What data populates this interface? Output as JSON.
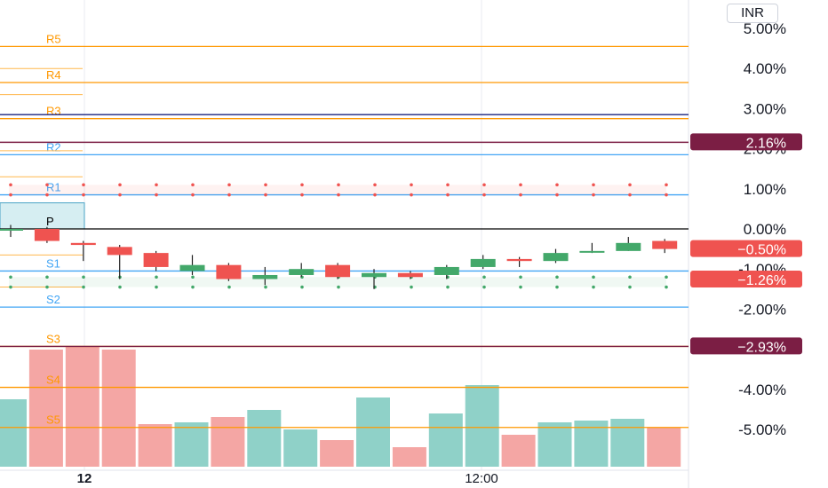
{
  "currency": "INR",
  "colors": {
    "up": "#43a86a",
    "down": "#ef5350",
    "vol_up": "#8fd1c8",
    "vol_down": "#f4a6a4",
    "pivot_resistance": "#ff9800",
    "pivot_support": "#ff9800",
    "pivot_rs2": "#42a5f5",
    "dark_line": "#7b1e44",
    "navy_line": "#1a237e",
    "pivot_line": "#000000"
  },
  "chart_data": {
    "type": "candlestick",
    "y_unit": "%",
    "ylim": [
      -6.2,
      5.8
    ],
    "yticks": [
      "5.00%",
      "4.00%",
      "3.00%",
      "2.00%",
      "1.00%",
      "0.00%",
      "-1.00%",
      "-2.00%",
      "-4.00%",
      "-5.00%"
    ],
    "ytick_values": [
      5,
      4,
      3,
      2,
      1,
      0,
      -1,
      -2,
      -4,
      -5
    ],
    "x_labels": [
      "12",
      "12:00"
    ],
    "candles": [
      {
        "o": 0.0,
        "c": 0.0,
        "h": 0.1,
        "l": -0.2
      },
      {
        "o": 0.0,
        "c": -0.3,
        "h": 0.05,
        "l": -0.35
      },
      {
        "o": -0.35,
        "c": -0.4,
        "h": -0.3,
        "l": -0.8
      },
      {
        "o": -0.45,
        "c": -0.65,
        "h": -0.4,
        "l": -1.25
      },
      {
        "o": -0.6,
        "c": -0.95,
        "h": -0.55,
        "l": -1.05
      },
      {
        "o": -1.05,
        "c": -0.9,
        "h": -0.65,
        "l": -1.15
      },
      {
        "o": -0.9,
        "c": -1.25,
        "h": -0.85,
        "l": -1.3
      },
      {
        "o": -1.25,
        "c": -1.15,
        "h": -0.95,
        "l": -1.4
      },
      {
        "o": -1.15,
        "c": -1.0,
        "h": -0.85,
        "l": -1.2
      },
      {
        "o": -0.9,
        "c": -1.2,
        "h": -0.85,
        "l": -1.25
      },
      {
        "o": -1.2,
        "c": -1.1,
        "h": -1.0,
        "l": -1.5
      },
      {
        "o": -1.1,
        "c": -1.2,
        "h": -1.05,
        "l": -1.25
      },
      {
        "o": -1.15,
        "c": -0.95,
        "h": -0.9,
        "l": -1.25
      },
      {
        "o": -0.95,
        "c": -0.75,
        "h": -0.65,
        "l": -1.0
      },
      {
        "o": -0.75,
        "c": -0.8,
        "h": -0.7,
        "l": -0.95
      },
      {
        "o": -0.8,
        "c": -0.6,
        "h": -0.5,
        "l": -0.85
      },
      {
        "o": -0.55,
        "c": -0.55,
        "h": -0.35,
        "l": -0.6
      },
      {
        "o": -0.55,
        "c": -0.35,
        "h": -0.2,
        "l": -0.55
      },
      {
        "o": -0.3,
        "c": -0.5,
        "h": -0.25,
        "l": -0.6
      }
    ],
    "volumes": [
      {
        "v": 3.8,
        "dir": "up"
      },
      {
        "v": 6.6,
        "dir": "down"
      },
      {
        "v": 6.8,
        "dir": "down"
      },
      {
        "v": 6.6,
        "dir": "down"
      },
      {
        "v": 2.4,
        "dir": "down"
      },
      {
        "v": 2.5,
        "dir": "up"
      },
      {
        "v": 2.8,
        "dir": "down"
      },
      {
        "v": 3.2,
        "dir": "up"
      },
      {
        "v": 2.1,
        "dir": "up"
      },
      {
        "v": 1.5,
        "dir": "down"
      },
      {
        "v": 3.9,
        "dir": "up"
      },
      {
        "v": 1.1,
        "dir": "down"
      },
      {
        "v": 3.0,
        "dir": "up"
      },
      {
        "v": 4.6,
        "dir": "up"
      },
      {
        "v": 1.8,
        "dir": "down"
      },
      {
        "v": 2.5,
        "dir": "up"
      },
      {
        "v": 2.6,
        "dir": "up"
      },
      {
        "v": 2.7,
        "dir": "up"
      },
      {
        "v": 2.2,
        "dir": "down"
      }
    ],
    "pivot_levels": [
      {
        "label": "R5",
        "value": 4.55
      },
      {
        "label": "R4",
        "value": 3.65
      },
      {
        "label": "R3",
        "value": 2.75
      },
      {
        "label": "R2",
        "value": 1.85
      },
      {
        "label": "R1",
        "value": 0.85
      },
      {
        "label": "P",
        "value": 0.0
      },
      {
        "label": "S1",
        "value": -1.05
      },
      {
        "label": "S2",
        "value": -1.95
      },
      {
        "label": "S3",
        "value": -2.93
      },
      {
        "label": "S4",
        "value": -3.95
      },
      {
        "label": "S5",
        "value": -4.95
      }
    ],
    "extra_lines": [
      {
        "value": 2.85,
        "style": "navy"
      },
      {
        "value": 2.16,
        "style": "dark"
      },
      {
        "value": -2.93,
        "style": "dark"
      }
    ],
    "price_badges": [
      {
        "text": "2.16%",
        "value": 2.16,
        "color": "#7b1e44"
      },
      {
        "text": "−0.50%",
        "value": -0.5,
        "color": "#ef5350"
      },
      {
        "text": "−1.26%",
        "value": -1.26,
        "color": "#ef5350"
      },
      {
        "text": "−2.93%",
        "value": -2.93,
        "color": "#7b1e44"
      }
    ],
    "dotted_bands": [
      {
        "top": 1.1,
        "bottom": 0.85,
        "color": "#ef5350"
      },
      {
        "top": -1.2,
        "bottom": -1.45,
        "color": "#43a86a"
      }
    ],
    "grid": false
  }
}
